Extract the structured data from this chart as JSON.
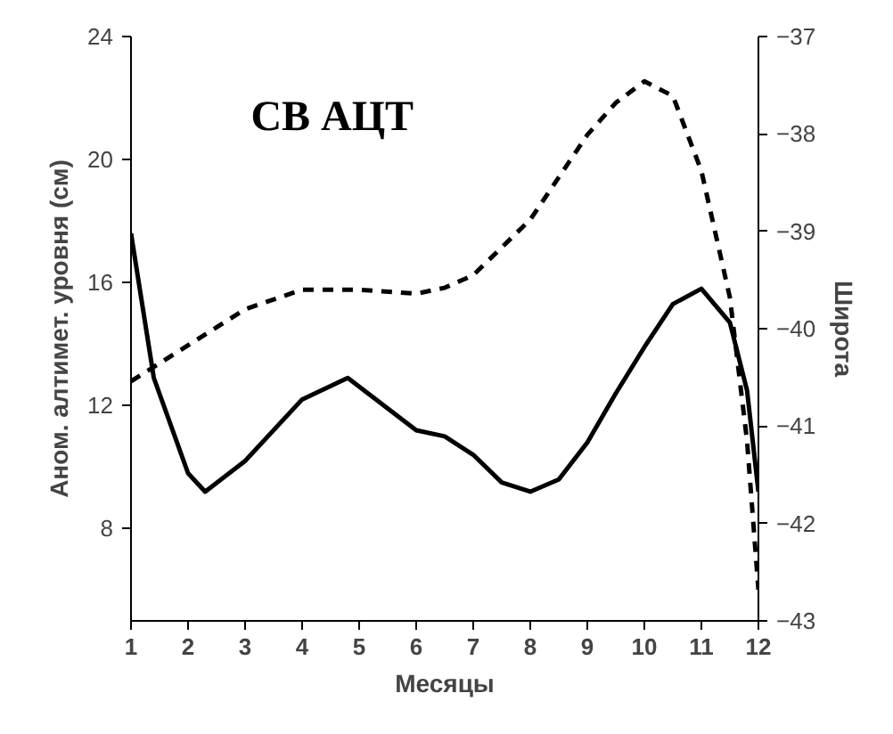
{
  "chart_data": {
    "type": "line",
    "title": "СВ АЦТ",
    "xlabel": "Месяцы",
    "ylabel": "Аном. алтимет. уровня (см)",
    "y2label": "Широта",
    "xlim": [
      1,
      12
    ],
    "xticks": [
      1,
      2,
      3,
      4,
      5,
      6,
      7,
      8,
      9,
      10,
      11,
      12
    ],
    "ylim": [
      5,
      24
    ],
    "yticks": [
      8,
      12,
      16,
      20,
      24
    ],
    "y2lim": [
      -43,
      -37
    ],
    "y2ticks": [
      -43,
      -42,
      -41,
      -40,
      -39,
      -38,
      -37
    ],
    "grid": false,
    "marker": "none",
    "series": [
      {
        "color": "#000000",
        "line_style": "solid",
        "x": [
          1,
          1.4,
          2,
          2.3,
          3,
          4,
          4.8,
          6,
          6.5,
          7,
          7.5,
          8,
          8.5,
          9,
          9.5,
          10,
          10.5,
          11,
          11.5,
          11.8,
          12
        ],
        "values": [
          17.6,
          12.9,
          9.8,
          9.2,
          10.2,
          12.2,
          12.9,
          11.2,
          11.0,
          10.4,
          9.5,
          9.2,
          9.6,
          10.8,
          12.4,
          13.9,
          15.3,
          15.8,
          14.7,
          12.5,
          9.2
        ]
      },
      {
        "color": "#000000",
        "line_style": "dashed",
        "axis": "y2",
        "x": [
          1,
          2,
          3,
          4,
          5,
          6,
          6.5,
          7,
          8,
          9,
          9.5,
          10,
          10.5,
          11,
          11.5,
          11.8,
          12
        ],
        "values": [
          -40.54,
          -40.17,
          -39.8,
          -39.6,
          -39.6,
          -39.64,
          -39.58,
          -39.45,
          -38.88,
          -38.01,
          -37.68,
          -37.46,
          -37.61,
          -38.38,
          -39.68,
          -41.15,
          -42.68
        ]
      }
    ]
  }
}
